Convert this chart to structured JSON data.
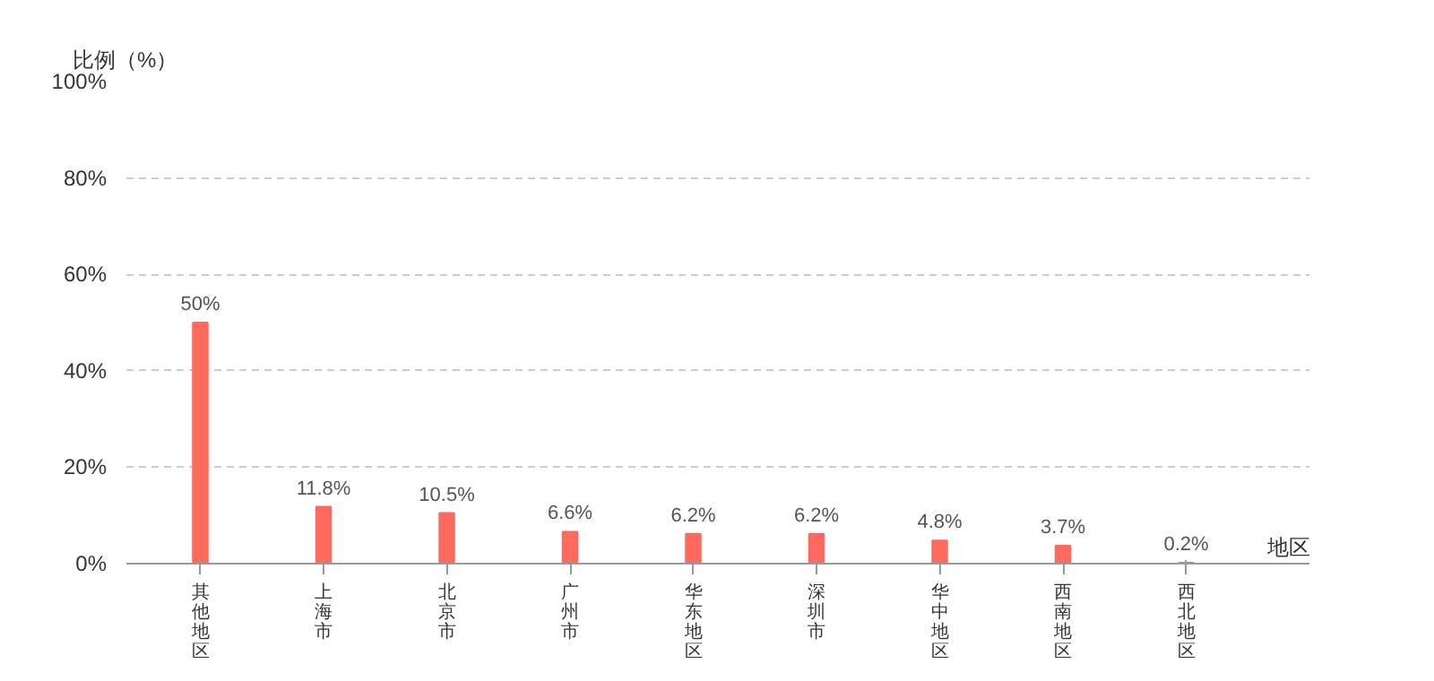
{
  "chart_data": {
    "type": "bar",
    "xlabel": "地区",
    "ylabel": "比例（%）",
    "categories": [
      "其他地区",
      "上海市",
      "北京市",
      "广州市",
      "华东地区",
      "深圳市",
      "华中地区",
      "西南地区",
      "西北地区"
    ],
    "values": [
      50,
      11.8,
      10.5,
      6.6,
      6.2,
      6.2,
      4.8,
      3.7,
      0.2
    ],
    "value_labels": [
      "50%",
      "11.8%",
      "10.5%",
      "6.6%",
      "6.2%",
      "6.2%",
      "4.8%",
      "3.7%",
      "0.2%"
    ],
    "color": "#ff6a5e",
    "ylim": [
      0,
      100
    ],
    "yticks": [
      {
        "value": 0,
        "label": "0%"
      },
      {
        "value": 20,
        "label": "20%"
      },
      {
        "value": 40,
        "label": "40%"
      },
      {
        "value": 60,
        "label": "60%"
      },
      {
        "value": 80,
        "label": "80%"
      },
      {
        "value": 100,
        "label": "100%"
      }
    ],
    "grid": "y"
  }
}
